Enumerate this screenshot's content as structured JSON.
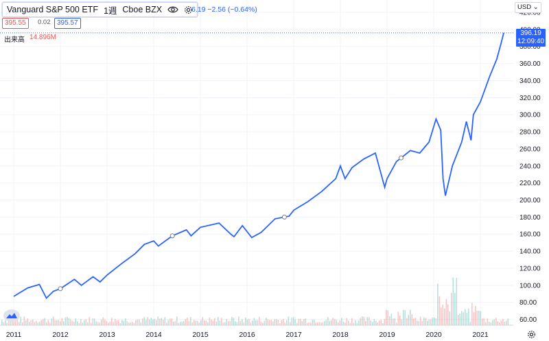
{
  "header": {
    "title": "Vanguard S&P 500 ETF",
    "interval": "1週",
    "exchange": "Cboe BZX",
    "change": "6.19 −2.56 (−0.64%)"
  },
  "quote": {
    "bid": "395.55",
    "spread": "0.02",
    "ask": "395.57"
  },
  "volume": {
    "label": "出来高",
    "value": "14.896M"
  },
  "currency": "USD",
  "last_price": {
    "value": "396.19",
    "time": "12:09:40"
  },
  "colors": {
    "line": "#2962ff",
    "up": "#26a69a",
    "down": "#ef5350",
    "grid": "#f0f3fa",
    "text": "#131722"
  },
  "icons": {
    "visibility": "eye-icon",
    "settings": "gear-icon",
    "logo": "logo-icon"
  },
  "chart_data": {
    "type": "line",
    "title": "Vanguard S&P 500 ETF",
    "x_range": [
      2011.0,
      2021.5
    ],
    "ylim": [
      50,
      420
    ],
    "y_ticks": [
      60,
      80,
      100,
      120,
      140,
      160,
      180,
      200,
      220,
      240,
      260,
      280,
      300,
      320,
      340,
      360,
      380,
      400,
      420
    ],
    "x_ticks": [
      "2011",
      "2012",
      "2013",
      "2014",
      "2015",
      "2016",
      "2017",
      "2018",
      "2019",
      "2020",
      "2021"
    ],
    "grid": true,
    "series": [
      {
        "name": "Vanguard S&P 500 ETF",
        "x": [
          2011.0,
          2011.3,
          2011.55,
          2011.7,
          2011.85,
          2012.0,
          2012.3,
          2012.45,
          2012.7,
          2012.85,
          2013.0,
          2013.3,
          2013.6,
          2013.8,
          2014.0,
          2014.1,
          2014.4,
          2014.7,
          2014.8,
          2015.0,
          2015.4,
          2015.65,
          2015.72,
          2015.9,
          2016.1,
          2016.3,
          2016.6,
          2016.9,
          2017.0,
          2017.3,
          2017.6,
          2017.9,
          2018.0,
          2018.1,
          2018.25,
          2018.5,
          2018.75,
          2018.95,
          2019.0,
          2019.2,
          2019.5,
          2019.7,
          2019.9,
          2020.05,
          2020.15,
          2020.2,
          2020.25,
          2020.4,
          2020.6,
          2020.7,
          2020.8,
          2020.85,
          2021.0,
          2021.2,
          2021.35,
          2021.45,
          2021.5
        ],
        "values": [
          87,
          97,
          101,
          85,
          93,
          96,
          107,
          100,
          110,
          104,
          112,
          125,
          137,
          148,
          152,
          146,
          158,
          165,
          158,
          168,
          173,
          160,
          157,
          170,
          156,
          162,
          178,
          181,
          188,
          198,
          210,
          225,
          240,
          225,
          238,
          248,
          255,
          215,
          225,
          245,
          258,
          255,
          268,
          295,
          282,
          225,
          205,
          240,
          268,
          292,
          270,
          300,
          315,
          345,
          365,
          385,
          396
        ]
      }
    ],
    "volume_series": {
      "name": "出来高",
      "markers": [
        2012.0,
        2014.4,
        2016.8,
        2019.3
      ]
    }
  }
}
